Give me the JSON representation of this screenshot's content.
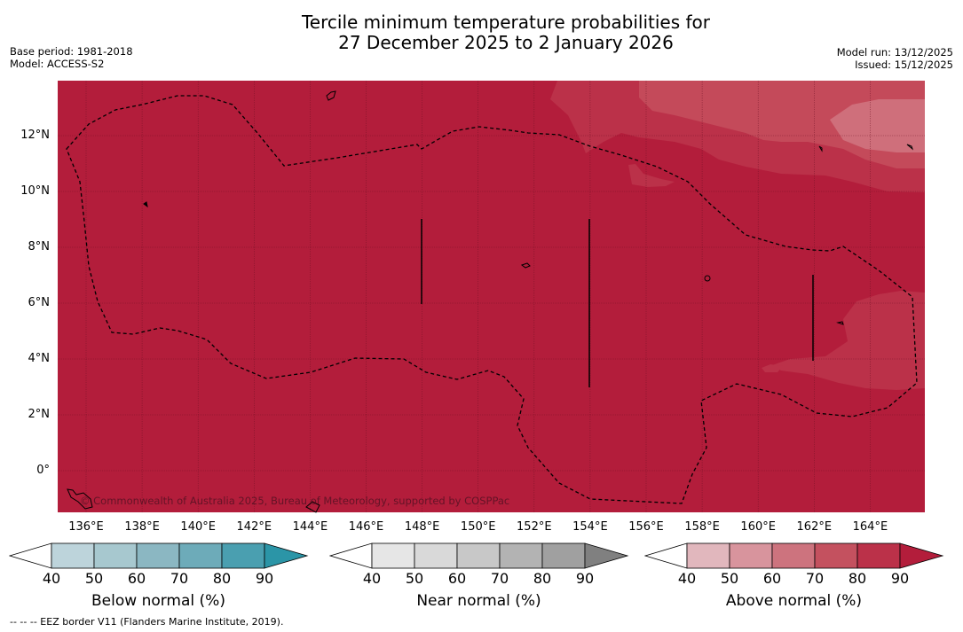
{
  "title": {
    "line1": "Tercile minimum temperature probabilities for",
    "line2": "27 December 2025 to 2 January 2026"
  },
  "meta_left": {
    "base_period": "Base period: 1981-2018",
    "model": "Model: ACCESS-S2"
  },
  "meta_right": {
    "model_run": "Model run: 13/12/2025",
    "issued": "Issued: 15/12/2025"
  },
  "map": {
    "lat_labels": [
      "12°N",
      "10°N",
      "8°N",
      "6°N",
      "4°N",
      "2°N",
      "0°"
    ],
    "lon_labels": [
      "136°E",
      "138°E",
      "140°E",
      "142°E",
      "144°E",
      "146°E",
      "148°E",
      "150°E",
      "152°E",
      "154°E",
      "156°E",
      "158°E",
      "160°E",
      "162°E",
      "164°E"
    ],
    "copyright": "© Commonwealth of Australia 2025, Bureau of Meteorology, supported by COSPPac",
    "colors": {
      "base_fill": "#b31d3b",
      "level_80": "#bb3149",
      "level_70": "#c44a5a",
      "level_60": "#cf6f7b"
    }
  },
  "colorbars": [
    {
      "label": "Below normal (%)",
      "ticks": [
        "40",
        "50",
        "60",
        "70",
        "80",
        "90"
      ],
      "colors": [
        "#ffffff",
        "#bdd4db",
        "#a7c8cf",
        "#8bb7c2",
        "#6dabb9",
        "#4a9fb0",
        "#2b95a7"
      ]
    },
    {
      "label": "Near normal (%)",
      "ticks": [
        "40",
        "50",
        "60",
        "70",
        "80",
        "90"
      ],
      "colors": [
        "#ffffff",
        "#e6e6e6",
        "#d9d9d9",
        "#c8c8c8",
        "#b3b3b3",
        "#a0a0a0",
        "#808080"
      ]
    },
    {
      "label": "Above normal (%)",
      "ticks": [
        "40",
        "50",
        "60",
        "70",
        "80",
        "90"
      ],
      "colors": [
        "#ffffff",
        "#e1b7bd",
        "#d8949d",
        "#cd737e",
        "#c4515f",
        "#bb3149",
        "#b31d3b"
      ]
    }
  ],
  "footnote": "--  --  -- EEZ border V11 (Flanders Marine Institute, 2019)."
}
